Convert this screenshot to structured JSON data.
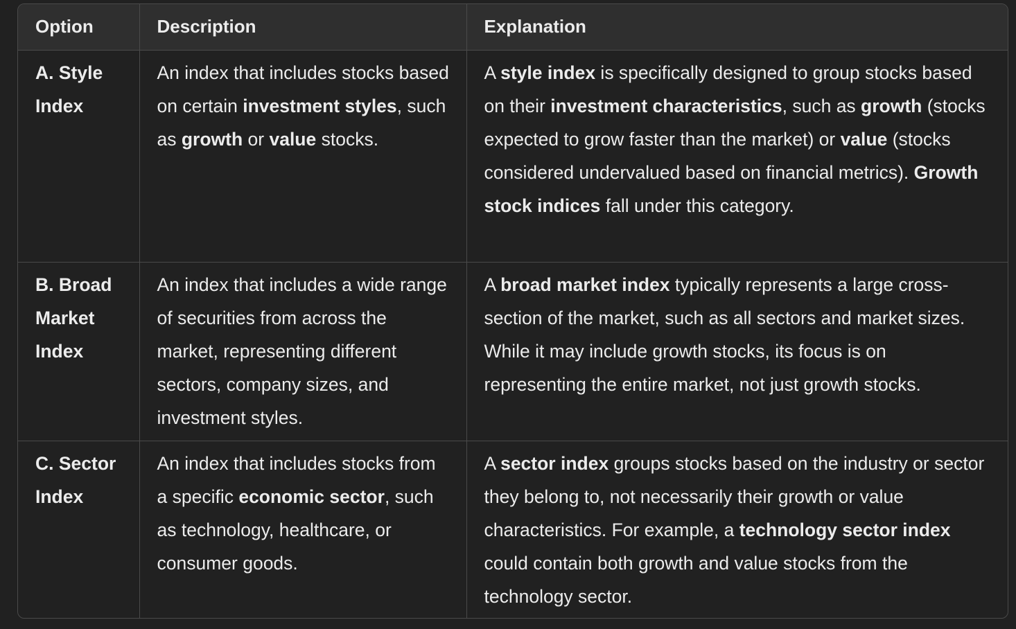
{
  "table": {
    "headers": [
      "Option",
      "Description",
      "Explanation"
    ],
    "rows": [
      {
        "option": "A. Style Index",
        "description": [
          {
            "t": "An index that includes stocks based on certain "
          },
          {
            "t": "investment styles",
            "b": true
          },
          {
            "t": ", such as "
          },
          {
            "t": "growth",
            "b": true
          },
          {
            "t": " or "
          },
          {
            "t": "value",
            "b": true
          },
          {
            "t": " stocks."
          }
        ],
        "explanation": [
          {
            "t": "A "
          },
          {
            "t": "style index",
            "b": true
          },
          {
            "t": " is specifically designed to group stocks based on their "
          },
          {
            "t": "investment characteristics",
            "b": true
          },
          {
            "t": ", such as "
          },
          {
            "t": "growth",
            "b": true
          },
          {
            "t": " (stocks expected to grow faster than the market) or "
          },
          {
            "t": "value",
            "b": true
          },
          {
            "t": " (stocks considered undervalued based on financial metrics). "
          },
          {
            "t": "Growth stock indices",
            "b": true
          },
          {
            "t": " fall under this category."
          }
        ]
      },
      {
        "option": "B. Broad Market Index",
        "description": [
          {
            "t": "An index that includes a wide range of securities from across the market, representing different sectors, company sizes, and investment styles."
          }
        ],
        "explanation": [
          {
            "t": "A "
          },
          {
            "t": "broad market index",
            "b": true
          },
          {
            "t": " typically represents a large cross-section of the market, such as all sectors and market sizes. While it may include growth stocks, its focus is on representing the entire market, not just growth stocks."
          }
        ]
      },
      {
        "option": "C. Sector Index",
        "description": [
          {
            "t": "An index that includes stocks from a specific "
          },
          {
            "t": "economic sector",
            "b": true
          },
          {
            "t": ", such as technology, healthcare, or consumer goods."
          }
        ],
        "explanation": [
          {
            "t": "A "
          },
          {
            "t": "sector index",
            "b": true
          },
          {
            "t": " groups stocks based on the industry or sector they belong to, not necessarily their growth or value characteristics. For example, a "
          },
          {
            "t": "technology sector index",
            "b": true
          },
          {
            "t": " could contain both growth and value stocks from the technology sector."
          }
        ]
      }
    ]
  }
}
